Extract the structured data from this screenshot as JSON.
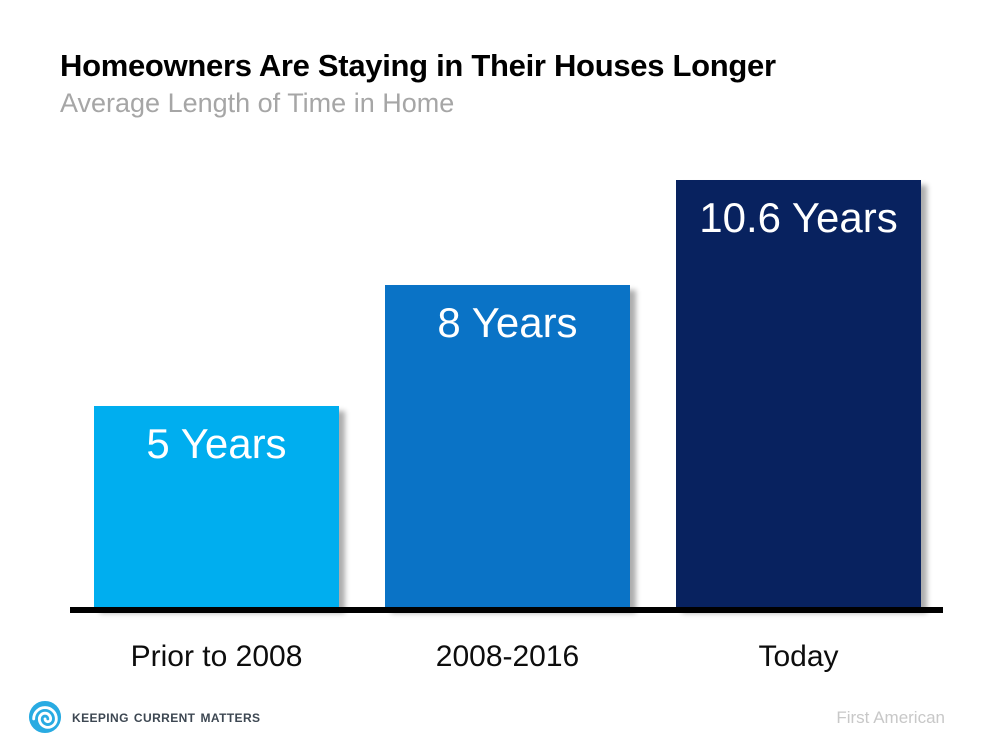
{
  "header": {
    "title": "Homeowners Are Staying in Their Houses Longer",
    "subtitle": "Average Length of Time in Home"
  },
  "chart_data": {
    "type": "bar",
    "title": "Homeowners Are Staying in Their Houses Longer",
    "subtitle": "Average Length of Time in Home",
    "categories": [
      "Prior to 2008",
      "2008-2016",
      "Today"
    ],
    "values": [
      5,
      8,
      10.6
    ],
    "bar_labels": [
      "5 Years",
      "8 Years",
      "10.6 Years"
    ],
    "bar_colors": [
      "#00AEEF",
      "#0A73C6",
      "#08225F"
    ],
    "value_unit": "Years",
    "ylim": [
      0,
      10.6
    ],
    "grid": false,
    "legend": false,
    "bar_label_color": "#FFFFFF",
    "axis_line_color": "#000000"
  },
  "footer": {
    "logo": {
      "icon": "swirl-icon",
      "icon_color": "#29ABE2",
      "text": "Keeping Current Matters"
    },
    "source": "First American"
  }
}
